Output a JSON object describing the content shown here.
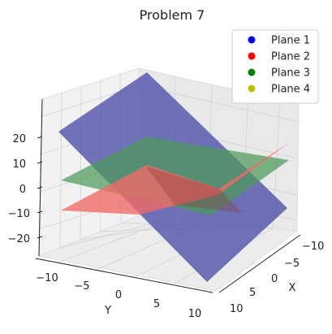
{
  "chart_data": {
    "type": "3d-surface",
    "title": "Problem 7",
    "xlabel": "X",
    "ylabel": "Y",
    "zlabel": "",
    "x_ticks": [
      "−10",
      "−5",
      "0",
      "5",
      "10"
    ],
    "y_ticks": [
      "−10",
      "−5",
      "0",
      "5",
      "10"
    ],
    "z_ticks": [
      "20",
      "10",
      "0",
      "−10",
      "−20"
    ],
    "xlim": [
      -10,
      10
    ],
    "ylim": [
      -10,
      10
    ],
    "zlim": [
      -25,
      25
    ],
    "grid": true,
    "legend_position": "top-right",
    "series": [
      {
        "name": "Plane 1",
        "color": "#0000ff",
        "surface_color": "#4a4ea8",
        "opacity": 0.78,
        "corners_xyz": [
          [
            -10,
            -10,
            24
          ],
          [
            10,
            -10,
            -2
          ],
          [
            10,
            10,
            -24
          ],
          [
            -10,
            10,
            2
          ]
        ]
      },
      {
        "name": "Plane 2",
        "color": "#ff0000",
        "surface_color": "#f06a66",
        "opacity": 0.8,
        "corners_xyz": [
          [
            -10,
            -10,
            -5
          ],
          [
            10,
            -10,
            -5
          ],
          [
            10,
            10,
            5
          ],
          [
            -10,
            10,
            5
          ]
        ]
      },
      {
        "name": "Plane 3",
        "color": "#008000",
        "surface_color": "#4e9a5a",
        "opacity": 0.72,
        "corners_xyz": [
          [
            -10,
            -10,
            1
          ],
          [
            10,
            -10,
            5
          ],
          [
            10,
            10,
            -1
          ],
          [
            -10,
            10,
            -5
          ]
        ]
      },
      {
        "name": "Plane 4",
        "color": "#bfbf00",
        "surface_color": "#bfbf00",
        "opacity": 0.0,
        "corners_xyz": []
      }
    ]
  }
}
